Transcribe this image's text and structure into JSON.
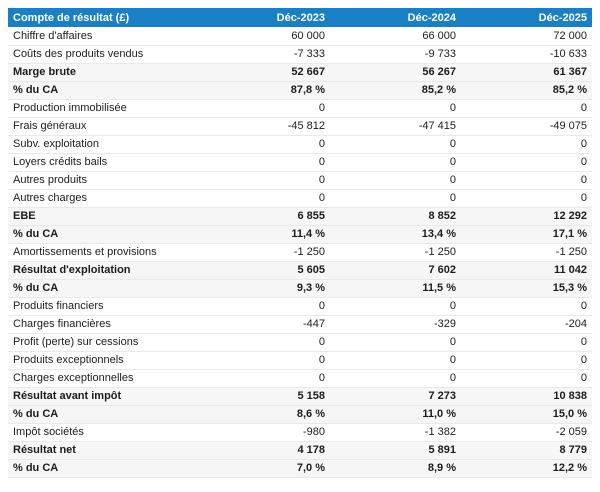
{
  "chart_data": {
    "type": "table",
    "title": "Compte de résultat (£)",
    "columns": [
      "Déc-2023",
      "Déc-2024",
      "Déc-2025"
    ],
    "rows": [
      {
        "label": "Chiffre d'affaires",
        "values": [
          "60 000",
          "66 000",
          "72 000"
        ],
        "emphasis": false
      },
      {
        "label": "Coûts des produits vendus",
        "values": [
          "-7 333",
          "-9 733",
          "-10 633"
        ],
        "emphasis": false
      },
      {
        "label": "Marge brute",
        "values": [
          "52 667",
          "56 267",
          "61 367"
        ],
        "emphasis": true
      },
      {
        "label": "% du CA",
        "values": [
          "87,8 %",
          "85,2 %",
          "85,2 %"
        ],
        "emphasis": true
      },
      {
        "label": "Production immobilisée",
        "values": [
          "0",
          "0",
          "0"
        ],
        "emphasis": false
      },
      {
        "label": "Frais généraux",
        "values": [
          "-45 812",
          "-47 415",
          "-49 075"
        ],
        "emphasis": false
      },
      {
        "label": "Subv. exploitation",
        "values": [
          "0",
          "0",
          "0"
        ],
        "emphasis": false
      },
      {
        "label": "Loyers crédits bails",
        "values": [
          "0",
          "0",
          "0"
        ],
        "emphasis": false
      },
      {
        "label": "Autres produits",
        "values": [
          "0",
          "0",
          "0"
        ],
        "emphasis": false
      },
      {
        "label": "Autres charges",
        "values": [
          "0",
          "0",
          "0"
        ],
        "emphasis": false
      },
      {
        "label": "EBE",
        "values": [
          "6 855",
          "8 852",
          "12 292"
        ],
        "emphasis": true
      },
      {
        "label": "% du CA",
        "values": [
          "11,4 %",
          "13,4 %",
          "17,1 %"
        ],
        "emphasis": true
      },
      {
        "label": "Amortissements et provisions",
        "values": [
          "-1 250",
          "-1 250",
          "-1 250"
        ],
        "emphasis": false
      },
      {
        "label": "Résultat d'exploitation",
        "values": [
          "5 605",
          "7 602",
          "11 042"
        ],
        "emphasis": true
      },
      {
        "label": "% du CA",
        "values": [
          "9,3 %",
          "11,5 %",
          "15,3 %"
        ],
        "emphasis": true
      },
      {
        "label": "Produits financiers",
        "values": [
          "0",
          "0",
          "0"
        ],
        "emphasis": false
      },
      {
        "label": "Charges financières",
        "values": [
          "-447",
          "-329",
          "-204"
        ],
        "emphasis": false
      },
      {
        "label": "Profit (perte) sur cessions",
        "values": [
          "0",
          "0",
          "0"
        ],
        "emphasis": false
      },
      {
        "label": "Produits exceptionnels",
        "values": [
          "0",
          "0",
          "0"
        ],
        "emphasis": false
      },
      {
        "label": "Charges exceptionnelles",
        "values": [
          "0",
          "0",
          "0"
        ],
        "emphasis": false
      },
      {
        "label": "Résultat avant impôt",
        "values": [
          "5 158",
          "7 273",
          "10 838"
        ],
        "emphasis": true
      },
      {
        "label": "% du CA",
        "values": [
          "8,6 %",
          "11,0 %",
          "15,0 %"
        ],
        "emphasis": true
      },
      {
        "label": "Impôt sociétés",
        "values": [
          "-980",
          "-1 382",
          "-2 059"
        ],
        "emphasis": false
      },
      {
        "label": "Résultat net",
        "values": [
          "4 178",
          "5 891",
          "8 779"
        ],
        "emphasis": true
      },
      {
        "label": "% du CA",
        "values": [
          "7,0 %",
          "8,9 %",
          "12,2 %"
        ],
        "emphasis": true
      }
    ]
  },
  "colors": {
    "header_bg": "#1a80c6",
    "header_text": "#ffffff",
    "highlight_bg": "#f6f6f6",
    "row_border": "#e9e9e9",
    "text": "#1c1c1c"
  }
}
